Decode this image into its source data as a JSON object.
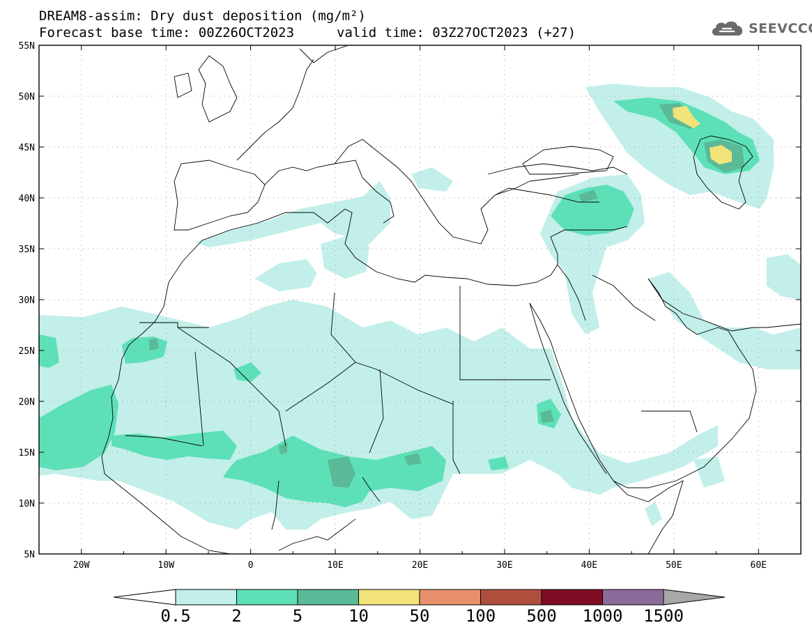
{
  "title": {
    "line1": "DREAM8-assim: Dry dust deposition (mg/m²)",
    "line2": "Forecast base time: 00Z26OCT2023",
    "line3": "valid time: 03Z27OCT2023 (+27)"
  },
  "logo": {
    "text": "SEEVCCC",
    "icon": "cloud-logo-icon"
  },
  "map": {
    "lon_range": [
      -25,
      65
    ],
    "lat_range": [
      5,
      55
    ],
    "lon_ticks": [
      "20W",
      "10W",
      "0",
      "10E",
      "20E",
      "30E",
      "40E",
      "50E",
      "60E"
    ],
    "lat_ticks": [
      "55N",
      "50N",
      "45N",
      "40N",
      "35N",
      "30N",
      "25N",
      "20N",
      "15N",
      "10N",
      "5N"
    ],
    "gridlines": "dotted"
  },
  "colorbar": {
    "labels": [
      "0.5",
      "2",
      "5",
      "10",
      "50",
      "100",
      "500",
      "1000",
      "1500"
    ],
    "colors": [
      "#ffffff",
      "#c2efe9",
      "#5de0b8",
      "#5ab996",
      "#f2e47a",
      "#e8906c",
      "#b04e3e",
      "#7e0c22",
      "#8c6a9a",
      "#a8a8a8"
    ]
  }
}
